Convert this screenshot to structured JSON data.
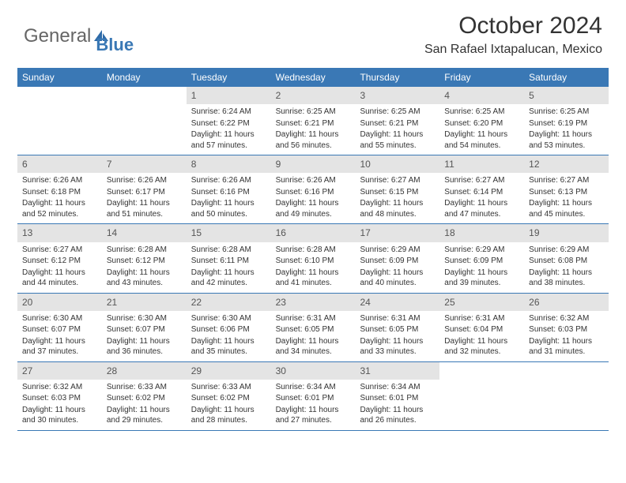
{
  "logo": {
    "part1": "General",
    "part2": "Blue"
  },
  "header": {
    "month_title": "October 2024",
    "location": "San Rafael Ixtapalucan, Mexico"
  },
  "colors": {
    "header_bar": "#3a78b5",
    "daynum_bg": "#e4e4e4",
    "text": "#333333",
    "background": "#ffffff"
  },
  "weekdays": [
    "Sunday",
    "Monday",
    "Tuesday",
    "Wednesday",
    "Thursday",
    "Friday",
    "Saturday"
  ],
  "weeks": [
    [
      {
        "num": "",
        "empty": true
      },
      {
        "num": "",
        "empty": true
      },
      {
        "num": "1",
        "sunrise": "Sunrise: 6:24 AM",
        "sunset": "Sunset: 6:22 PM",
        "daylight": "Daylight: 11 hours and 57 minutes."
      },
      {
        "num": "2",
        "sunrise": "Sunrise: 6:25 AM",
        "sunset": "Sunset: 6:21 PM",
        "daylight": "Daylight: 11 hours and 56 minutes."
      },
      {
        "num": "3",
        "sunrise": "Sunrise: 6:25 AM",
        "sunset": "Sunset: 6:21 PM",
        "daylight": "Daylight: 11 hours and 55 minutes."
      },
      {
        "num": "4",
        "sunrise": "Sunrise: 6:25 AM",
        "sunset": "Sunset: 6:20 PM",
        "daylight": "Daylight: 11 hours and 54 minutes."
      },
      {
        "num": "5",
        "sunrise": "Sunrise: 6:25 AM",
        "sunset": "Sunset: 6:19 PM",
        "daylight": "Daylight: 11 hours and 53 minutes."
      }
    ],
    [
      {
        "num": "6",
        "sunrise": "Sunrise: 6:26 AM",
        "sunset": "Sunset: 6:18 PM",
        "daylight": "Daylight: 11 hours and 52 minutes."
      },
      {
        "num": "7",
        "sunrise": "Sunrise: 6:26 AM",
        "sunset": "Sunset: 6:17 PM",
        "daylight": "Daylight: 11 hours and 51 minutes."
      },
      {
        "num": "8",
        "sunrise": "Sunrise: 6:26 AM",
        "sunset": "Sunset: 6:16 PM",
        "daylight": "Daylight: 11 hours and 50 minutes."
      },
      {
        "num": "9",
        "sunrise": "Sunrise: 6:26 AM",
        "sunset": "Sunset: 6:16 PM",
        "daylight": "Daylight: 11 hours and 49 minutes."
      },
      {
        "num": "10",
        "sunrise": "Sunrise: 6:27 AM",
        "sunset": "Sunset: 6:15 PM",
        "daylight": "Daylight: 11 hours and 48 minutes."
      },
      {
        "num": "11",
        "sunrise": "Sunrise: 6:27 AM",
        "sunset": "Sunset: 6:14 PM",
        "daylight": "Daylight: 11 hours and 47 minutes."
      },
      {
        "num": "12",
        "sunrise": "Sunrise: 6:27 AM",
        "sunset": "Sunset: 6:13 PM",
        "daylight": "Daylight: 11 hours and 45 minutes."
      }
    ],
    [
      {
        "num": "13",
        "sunrise": "Sunrise: 6:27 AM",
        "sunset": "Sunset: 6:12 PM",
        "daylight": "Daylight: 11 hours and 44 minutes."
      },
      {
        "num": "14",
        "sunrise": "Sunrise: 6:28 AM",
        "sunset": "Sunset: 6:12 PM",
        "daylight": "Daylight: 11 hours and 43 minutes."
      },
      {
        "num": "15",
        "sunrise": "Sunrise: 6:28 AM",
        "sunset": "Sunset: 6:11 PM",
        "daylight": "Daylight: 11 hours and 42 minutes."
      },
      {
        "num": "16",
        "sunrise": "Sunrise: 6:28 AM",
        "sunset": "Sunset: 6:10 PM",
        "daylight": "Daylight: 11 hours and 41 minutes."
      },
      {
        "num": "17",
        "sunrise": "Sunrise: 6:29 AM",
        "sunset": "Sunset: 6:09 PM",
        "daylight": "Daylight: 11 hours and 40 minutes."
      },
      {
        "num": "18",
        "sunrise": "Sunrise: 6:29 AM",
        "sunset": "Sunset: 6:09 PM",
        "daylight": "Daylight: 11 hours and 39 minutes."
      },
      {
        "num": "19",
        "sunrise": "Sunrise: 6:29 AM",
        "sunset": "Sunset: 6:08 PM",
        "daylight": "Daylight: 11 hours and 38 minutes."
      }
    ],
    [
      {
        "num": "20",
        "sunrise": "Sunrise: 6:30 AM",
        "sunset": "Sunset: 6:07 PM",
        "daylight": "Daylight: 11 hours and 37 minutes."
      },
      {
        "num": "21",
        "sunrise": "Sunrise: 6:30 AM",
        "sunset": "Sunset: 6:07 PM",
        "daylight": "Daylight: 11 hours and 36 minutes."
      },
      {
        "num": "22",
        "sunrise": "Sunrise: 6:30 AM",
        "sunset": "Sunset: 6:06 PM",
        "daylight": "Daylight: 11 hours and 35 minutes."
      },
      {
        "num": "23",
        "sunrise": "Sunrise: 6:31 AM",
        "sunset": "Sunset: 6:05 PM",
        "daylight": "Daylight: 11 hours and 34 minutes."
      },
      {
        "num": "24",
        "sunrise": "Sunrise: 6:31 AM",
        "sunset": "Sunset: 6:05 PM",
        "daylight": "Daylight: 11 hours and 33 minutes."
      },
      {
        "num": "25",
        "sunrise": "Sunrise: 6:31 AM",
        "sunset": "Sunset: 6:04 PM",
        "daylight": "Daylight: 11 hours and 32 minutes."
      },
      {
        "num": "26",
        "sunrise": "Sunrise: 6:32 AM",
        "sunset": "Sunset: 6:03 PM",
        "daylight": "Daylight: 11 hours and 31 minutes."
      }
    ],
    [
      {
        "num": "27",
        "sunrise": "Sunrise: 6:32 AM",
        "sunset": "Sunset: 6:03 PM",
        "daylight": "Daylight: 11 hours and 30 minutes."
      },
      {
        "num": "28",
        "sunrise": "Sunrise: 6:33 AM",
        "sunset": "Sunset: 6:02 PM",
        "daylight": "Daylight: 11 hours and 29 minutes."
      },
      {
        "num": "29",
        "sunrise": "Sunrise: 6:33 AM",
        "sunset": "Sunset: 6:02 PM",
        "daylight": "Daylight: 11 hours and 28 minutes."
      },
      {
        "num": "30",
        "sunrise": "Sunrise: 6:34 AM",
        "sunset": "Sunset: 6:01 PM",
        "daylight": "Daylight: 11 hours and 27 minutes."
      },
      {
        "num": "31",
        "sunrise": "Sunrise: 6:34 AM",
        "sunset": "Sunset: 6:01 PM",
        "daylight": "Daylight: 11 hours and 26 minutes."
      },
      {
        "num": "",
        "empty": true
      },
      {
        "num": "",
        "empty": true
      }
    ]
  ]
}
